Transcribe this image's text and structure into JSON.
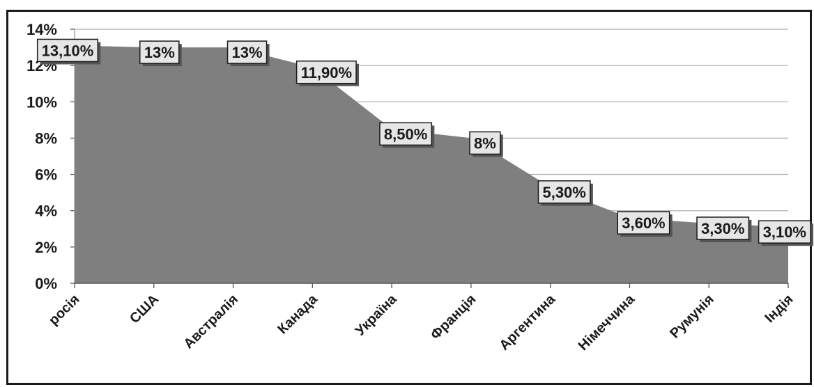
{
  "chart_data": {
    "type": "area",
    "categories": [
      "росія",
      "США",
      "Австралія",
      "Канада",
      "Україна",
      "Франція",
      "Аргентина",
      "Німеччина",
      "Румунія",
      "Індія"
    ],
    "values": [
      13.1,
      13,
      13,
      11.9,
      8.5,
      8,
      5.3,
      3.6,
      3.3,
      3.1
    ],
    "data_labels": [
      "13,10%",
      "13%",
      "13%",
      "11,90%",
      "8,50%",
      "8%",
      "5,30%",
      "3,60%",
      "3,30%",
      "3,10%"
    ],
    "y_ticks": [
      "0%",
      "2%",
      "4%",
      "6%",
      "8%",
      "10%",
      "12%",
      "14%"
    ],
    "ylim": [
      0,
      14
    ],
    "title": "",
    "xlabel": "",
    "ylabel": "",
    "grid": true,
    "legend": "none",
    "colors": {
      "area": "#7f7f7f",
      "grid": "#b0b0b0",
      "label_box": "#e6e6e6",
      "label_border": "#1a1a1a"
    }
  }
}
